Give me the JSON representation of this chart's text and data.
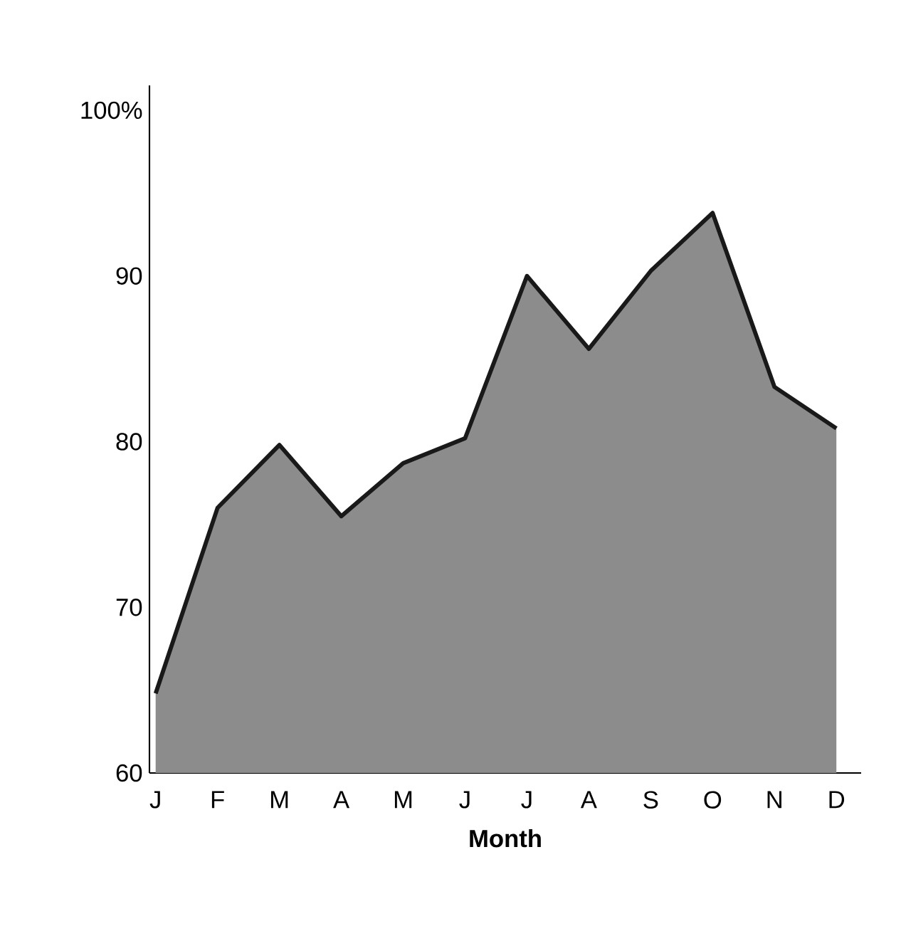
{
  "chart_data": {
    "type": "area",
    "xlabel": "Month",
    "categories": [
      "J",
      "F",
      "M",
      "A",
      "M",
      "J",
      "J",
      "A",
      "S",
      "O",
      "N",
      "D"
    ],
    "values": [
      64.8,
      76.0,
      79.8,
      75.5,
      78.7,
      80.2,
      90.0,
      85.6,
      90.3,
      93.8,
      83.3,
      80.8
    ],
    "color": "#8c8c8c",
    "ylim": [
      60,
      101.5
    ],
    "yticks": [
      60,
      70,
      80,
      90,
      {
        "value": 100,
        "label": "100%"
      }
    ],
    "grid": false
  }
}
